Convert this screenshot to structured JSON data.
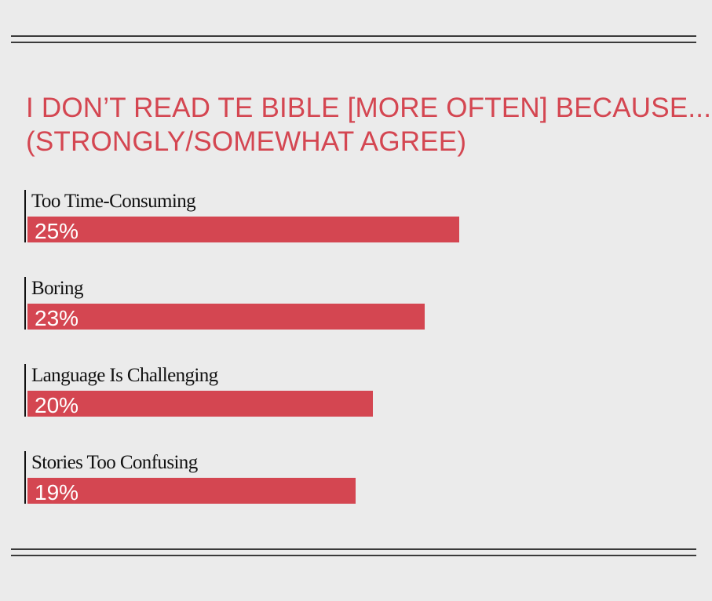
{
  "colors": {
    "background": "#ebebeb",
    "accent": "#d44651",
    "rule": "#3a3a3a",
    "axis": "#111111"
  },
  "chart_data": {
    "type": "bar",
    "orientation": "horizontal",
    "title_lines": [
      "I DON’T READ TE BIBLE [MORE OFTEN] BECAUSE...",
      "(STRONGLY/SOMEWHAT AGREE)"
    ],
    "categories": [
      "Too Time-Consuming",
      "Boring",
      "Language Is Challenging",
      "Stories Too Confusing"
    ],
    "values": [
      25,
      23,
      20,
      19
    ],
    "value_labels": [
      "25%",
      "23%",
      "20%",
      "19%"
    ],
    "unit": "%",
    "xlim": [
      0,
      40
    ],
    "grid": false,
    "legend": "none"
  }
}
